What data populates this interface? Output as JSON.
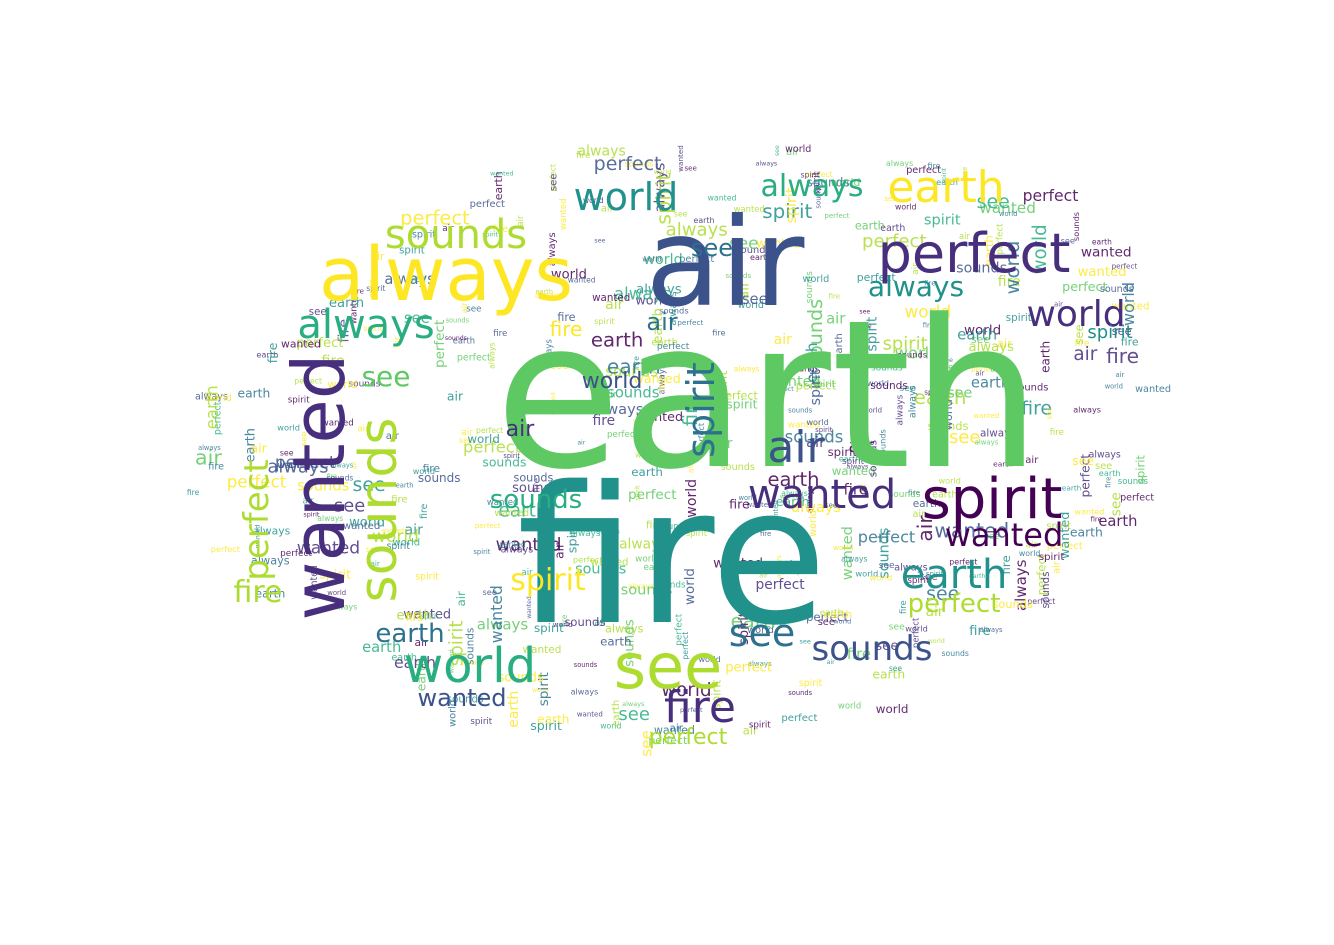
{
  "vocabulary": [
    "earth",
    "fire",
    "air",
    "always",
    "wanted",
    "world",
    "sounds",
    "spirit",
    "perfect",
    "see"
  ],
  "palette": {
    "viridis_dark_purple": "#440154",
    "viridis_indigo": "#472f7d",
    "viridis_blue": "#3b528b",
    "viridis_steel": "#2c728e",
    "viridis_teal": "#21918c",
    "viridis_green_teal": "#28ae80",
    "viridis_green": "#5ec962",
    "viridis_lime": "#addc30",
    "viridis_yellow": "#fde725",
    "background": "#ffffff"
  },
  "words": [
    {
      "text": "earth",
      "color": "#5ec962",
      "weight": 1.0
    },
    {
      "text": "fire",
      "color": "#21918c",
      "weight": 0.9
    },
    {
      "text": "air",
      "color": "#3b528b",
      "weight": 0.62
    },
    {
      "text": "always",
      "color": "#fde725",
      "weight": 0.42
    },
    {
      "text": "wanted",
      "color": "#472f7d",
      "weight": 0.38
    },
    {
      "text": "world",
      "color": "#28ae80",
      "weight": 0.3
    },
    {
      "text": "sounds",
      "color": "#addc30",
      "weight": 0.3
    },
    {
      "text": "spirit",
      "color": "#440154",
      "weight": 0.3
    },
    {
      "text": "perfect",
      "color": "#472f7d",
      "weight": 0.28
    },
    {
      "text": "see",
      "color": "#5ec962",
      "weight": 0.28
    },
    {
      "text": "always",
      "color": "#28ae80",
      "weight": 0.2
    },
    {
      "text": "sounds",
      "color": "#addc30",
      "weight": 0.2
    },
    {
      "text": "world",
      "color": "#472f7d",
      "weight": 0.18
    },
    {
      "text": "perfect",
      "color": "#21918c",
      "weight": 0.16
    },
    {
      "text": "wanted",
      "color": "#472f7d",
      "weight": 0.16
    },
    {
      "text": "spirit",
      "color": "#fde725",
      "weight": 0.14
    },
    {
      "text": "earth",
      "color": "#fde725",
      "weight": 0.16
    },
    {
      "text": "earth",
      "color": "#21918c",
      "weight": 0.16
    },
    {
      "text": "fire",
      "color": "#472f7d",
      "weight": 0.16
    },
    {
      "text": "air",
      "color": "#3b528b",
      "weight": 0.16
    },
    {
      "text": "see",
      "color": "#2c728e",
      "weight": 0.16
    },
    {
      "text": "sounds",
      "color": "#3b528b",
      "weight": 0.15
    },
    {
      "text": "world",
      "color": "#21918c",
      "weight": 0.14
    },
    {
      "text": "wanted",
      "color": "#440154",
      "weight": 0.14
    },
    {
      "text": "perfect",
      "color": "#addc30",
      "weight": 0.12
    },
    {
      "text": "always",
      "color": "#21918c",
      "weight": 0.12
    },
    {
      "text": "spirit",
      "color": "#2c728e",
      "weight": 0.11
    },
    {
      "text": "see",
      "color": "#2c728e",
      "weight": 0.11
    },
    {
      "text": "air",
      "color": "#472f7d",
      "weight": 0.11
    },
    {
      "text": "fire",
      "color": "#addc30",
      "weight": 0.1
    },
    {
      "text": "earth",
      "color": "#2c728e",
      "weight": 0.1
    },
    {
      "text": "world",
      "color": "#3b528b",
      "weight": 0.1
    },
    {
      "text": "sounds",
      "color": "#28ae80",
      "weight": 0.1
    },
    {
      "text": "wanted",
      "color": "#3b528b",
      "weight": 0.1
    },
    {
      "text": "perfect",
      "color": "#addc30",
      "weight": 0.1
    },
    {
      "text": "always",
      "color": "#28ae80",
      "weight": 0.1
    },
    {
      "text": "spirit",
      "color": "#21918c",
      "weight": 0.09
    },
    {
      "text": "see",
      "color": "#5ec962",
      "weight": 0.09
    },
    {
      "text": "air",
      "color": "#2c728e",
      "weight": 0.09
    },
    {
      "text": "fire",
      "color": "#fde725",
      "weight": 0.09
    }
  ]
}
